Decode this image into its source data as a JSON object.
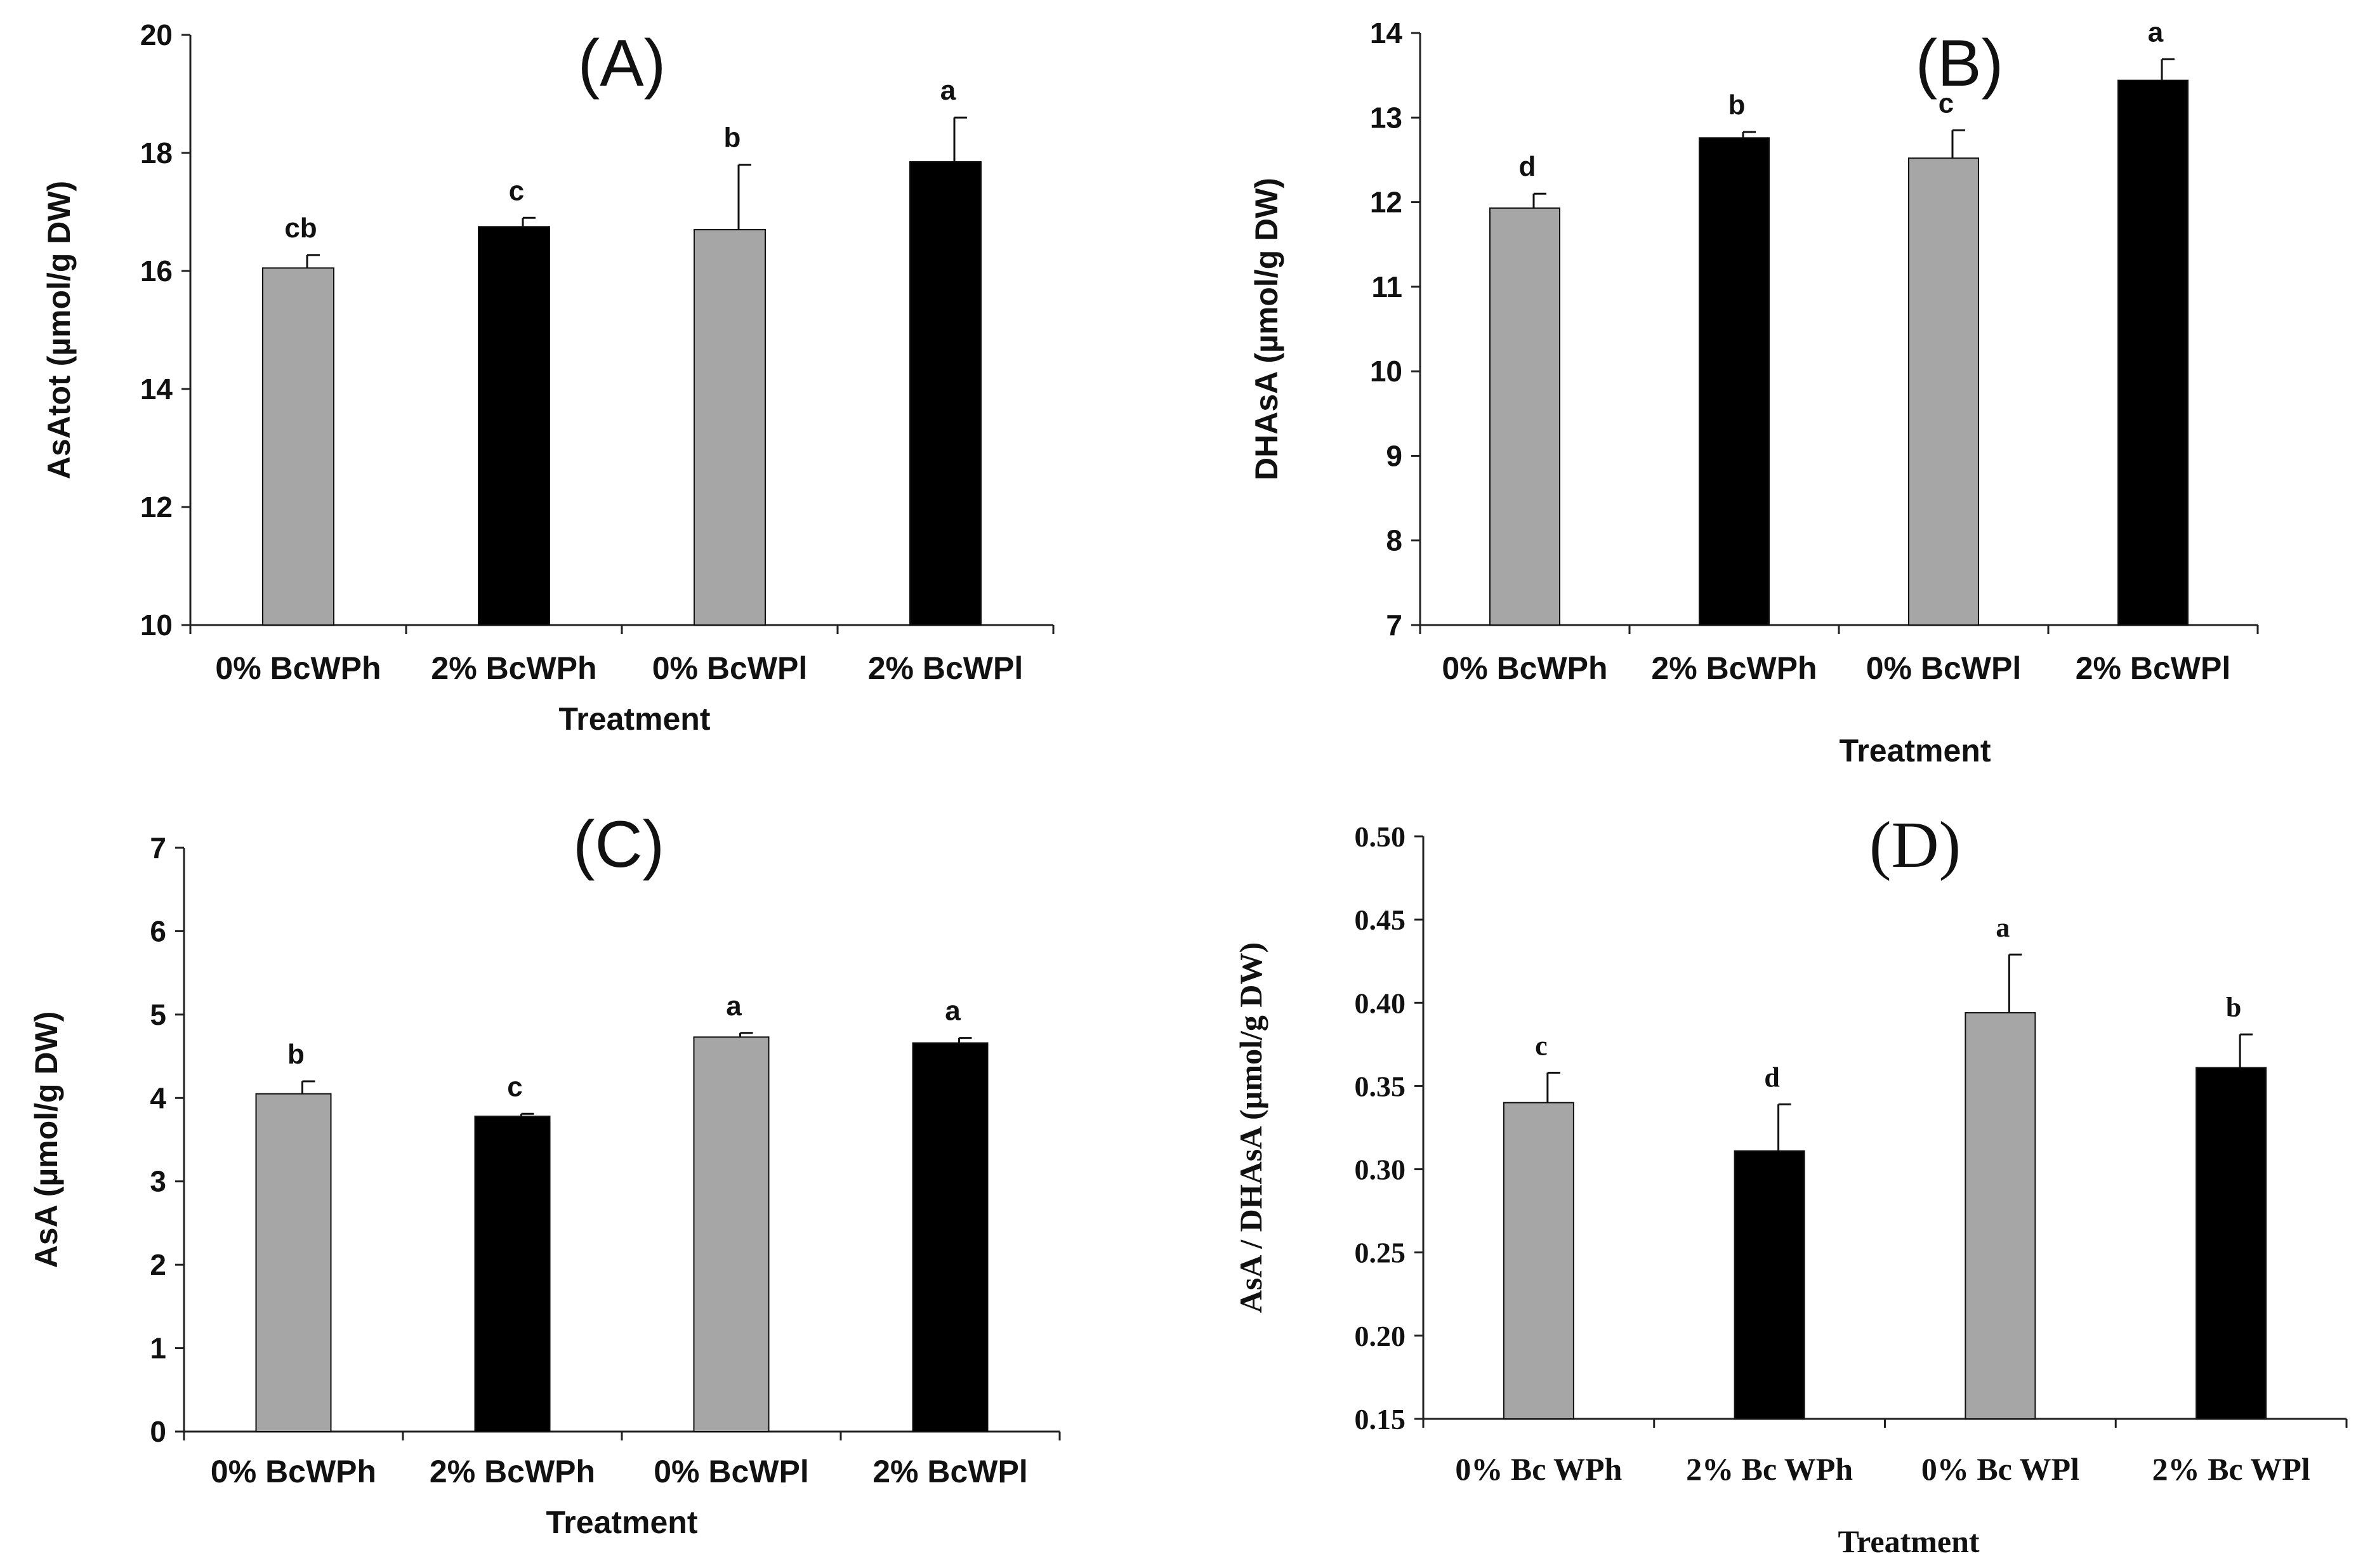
{
  "chart_data": [
    {
      "type": "bar",
      "title": "(A)",
      "xlabel": "Treatment",
      "ylabel": "AsAtot (µmol/g DW)",
      "ylim": [
        10,
        20
      ],
      "yticks": [
        10,
        12,
        14,
        16,
        18,
        20
      ],
      "ytick_labels": [
        "10",
        "12",
        "14",
        "16",
        "18",
        "20"
      ],
      "categories": [
        "0%  BcWPh",
        "2%  BcWPh",
        "0%  BcWPl",
        "2%  BcWPl"
      ],
      "values": [
        16.05,
        16.75,
        16.7,
        17.85
      ],
      "errors": [
        0.22,
        0.15,
        1.1,
        0.75
      ],
      "significance": [
        "cb",
        "c",
        "b",
        "a"
      ],
      "colors": [
        "#a6a6a6",
        "#000000",
        "#a6a6a6",
        "#000000"
      ],
      "legend": "none"
    },
    {
      "type": "bar",
      "title": "(B)",
      "xlabel": "Treatment",
      "ylabel": "DHAsA (µmol/g DW)",
      "ylim": [
        7,
        14
      ],
      "yticks": [
        7,
        8,
        9,
        10,
        11,
        12,
        13,
        14
      ],
      "ytick_labels": [
        "7",
        "8",
        "9",
        "10",
        "11",
        "12",
        "13",
        "14"
      ],
      "categories": [
        "0%  BcWPh",
        "2%  BcWPh",
        "0%  BcWPl",
        "2%  BcWPl"
      ],
      "values": [
        11.93,
        12.76,
        12.52,
        13.44
      ],
      "errors": [
        0.17,
        0.07,
        0.33,
        0.25
      ],
      "significance": [
        "d",
        "b",
        "c",
        "a"
      ],
      "colors": [
        "#a6a6a6",
        "#000000",
        "#a6a6a6",
        "#000000"
      ],
      "legend": "none"
    },
    {
      "type": "bar",
      "title": "(C)",
      "xlabel": "Treatment",
      "ylabel": "AsA (µmol/g DW)",
      "ylim": [
        0,
        7
      ],
      "yticks": [
        0,
        1,
        2,
        3,
        4,
        5,
        6,
        7
      ],
      "ytick_labels": [
        "0",
        "1",
        "2",
        "3",
        "4",
        "5",
        "6",
        "7"
      ],
      "categories": [
        "0%  BcWPh",
        "2%  BcWPh",
        "0%  BcWPl",
        "2%  BcWPl"
      ],
      "values": [
        4.05,
        3.78,
        4.73,
        4.66
      ],
      "errors": [
        0.15,
        0.03,
        0.05,
        0.06
      ],
      "significance": [
        "b",
        "c",
        "a",
        "a"
      ],
      "colors": [
        "#a6a6a6",
        "#000000",
        "#a6a6a6",
        "#000000"
      ],
      "legend": "none"
    },
    {
      "type": "bar",
      "title": "(D)",
      "xlabel": "Treatment",
      "ylabel": "AsA / DHAsA (µmol/g DW)",
      "ylim": [
        0.15,
        0.5
      ],
      "yticks": [
        0.15,
        0.2,
        0.25,
        0.3,
        0.35,
        0.4,
        0.45,
        0.5
      ],
      "ytick_labels": [
        "0.15",
        "0.20",
        "0.25",
        "0.30",
        "0.35",
        "0.40",
        "0.45",
        "0.50"
      ],
      "categories": [
        "0% Bc WPh",
        "2% Bc WPh",
        "0% Bc WPl",
        "2% Bc WPl"
      ],
      "values": [
        0.34,
        0.311,
        0.394,
        0.361
      ],
      "errors": [
        0.018,
        0.028,
        0.035,
        0.02
      ],
      "significance": [
        "c",
        "d",
        "a",
        "b"
      ],
      "colors": [
        "#a6a6a6",
        "#000000",
        "#a6a6a6",
        "#000000"
      ],
      "legend": "none"
    }
  ]
}
